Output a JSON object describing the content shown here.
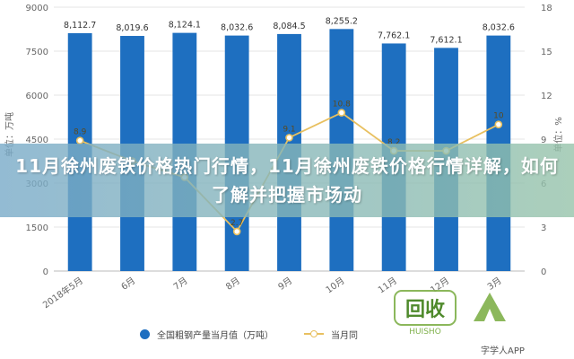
{
  "chart_data": {
    "type": "bar",
    "categories": [
      "2018年5月",
      "6月",
      "7月",
      "8月",
      "9月",
      "10月",
      "11月",
      "12月",
      "3月"
    ],
    "series": [
      {
        "name": "全国粗钢产量当月值（万吨）",
        "type": "bar",
        "axis": "left",
        "values": [
          8112.7,
          8019.6,
          8124.1,
          8032.6,
          8084.5,
          8255.2,
          7762.1,
          7612.1,
          8032.6
        ],
        "labels": [
          "8,112.7",
          "8,019.6",
          "8,124.1",
          "8,032.6",
          "8,084.5",
          "8,255.2",
          "7,762.1",
          "7,612.1",
          "8,032.6"
        ]
      },
      {
        "name": "当月同",
        "type": "line",
        "axis": "right",
        "values": [
          8.9,
          7.5,
          6.4,
          2.7,
          9.1,
          10.8,
          8.2,
          8.2,
          10
        ],
        "labels": [
          "8.9",
          "",
          "",
          "2.7",
          "9.1",
          "10.8",
          "8.2",
          "",
          "10"
        ]
      }
    ],
    "ylabel": "单位：万吨",
    "y2label": "单位：%",
    "ylim": [
      0,
      9000
    ],
    "y2lim": [
      0,
      18
    ],
    "yticks": [
      "0",
      "1500",
      "3000",
      "4500",
      "6000",
      "7500",
      "9000"
    ],
    "y2ticks": [
      "0",
      "3",
      "6",
      "9",
      "12",
      "15",
      "18"
    ],
    "grid": true,
    "legend_position": "bottom",
    "colors": {
      "bar": "#1e6fc0",
      "line": "#e8c060"
    }
  },
  "overlay": {
    "title": "11月徐州废铁价格热门行情，11月徐州废铁价格行情详解，如何了解并把握市场动"
  },
  "logo": {
    "text": "回收",
    "wordmark": "HUISHO"
  },
  "watermark": "字学人APP"
}
